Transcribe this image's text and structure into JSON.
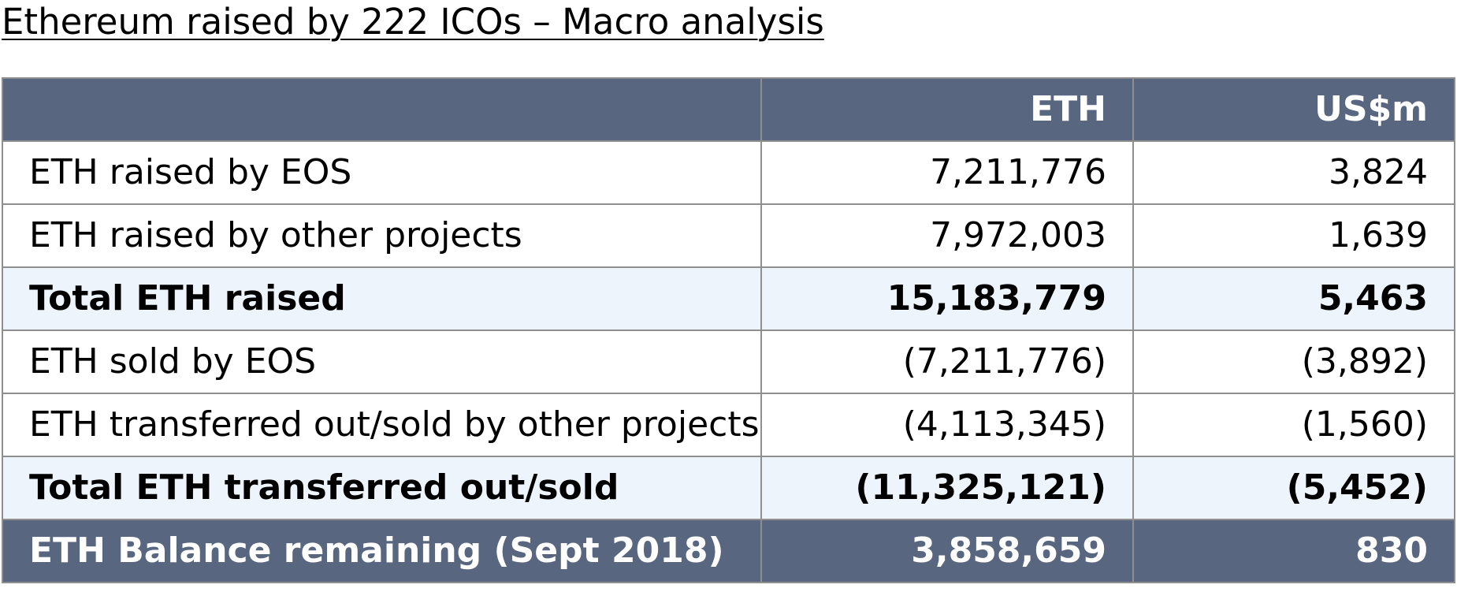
{
  "title": "Ethereum raised by 222 ICOs – Macro analysis",
  "table": {
    "columns": [
      "",
      "ETH",
      "US$m"
    ],
    "rows": [
      {
        "label": "ETH raised by EOS",
        "eth": "7,211,776",
        "usd": "3,824",
        "style": "plain"
      },
      {
        "label": "ETH raised by other projects",
        "eth": "7,972,003",
        "usd": "1,639",
        "style": "plain"
      },
      {
        "label": "Total ETH raised",
        "eth": "15,183,779",
        "usd": "5,463",
        "style": "total"
      },
      {
        "label": "ETH sold by EOS",
        "eth": "(7,211,776)",
        "usd": "(3,892)",
        "style": "plain"
      },
      {
        "label": "ETH transferred out/sold by other projects",
        "eth": "(4,113,345)",
        "usd": "(1,560)",
        "style": "plain"
      },
      {
        "label": "Total ETH transferred out/sold",
        "eth": "(11,325,121)",
        "usd": "(5,452)",
        "style": "total"
      },
      {
        "label": "ETH Balance remaining (Sept 2018)",
        "eth": "3,858,659",
        "usd": "830",
        "style": "balance"
      }
    ]
  },
  "colors": {
    "header_bg": "#58667f",
    "total_row_bg": "#eef4fb",
    "border": "#8f8f8f"
  }
}
